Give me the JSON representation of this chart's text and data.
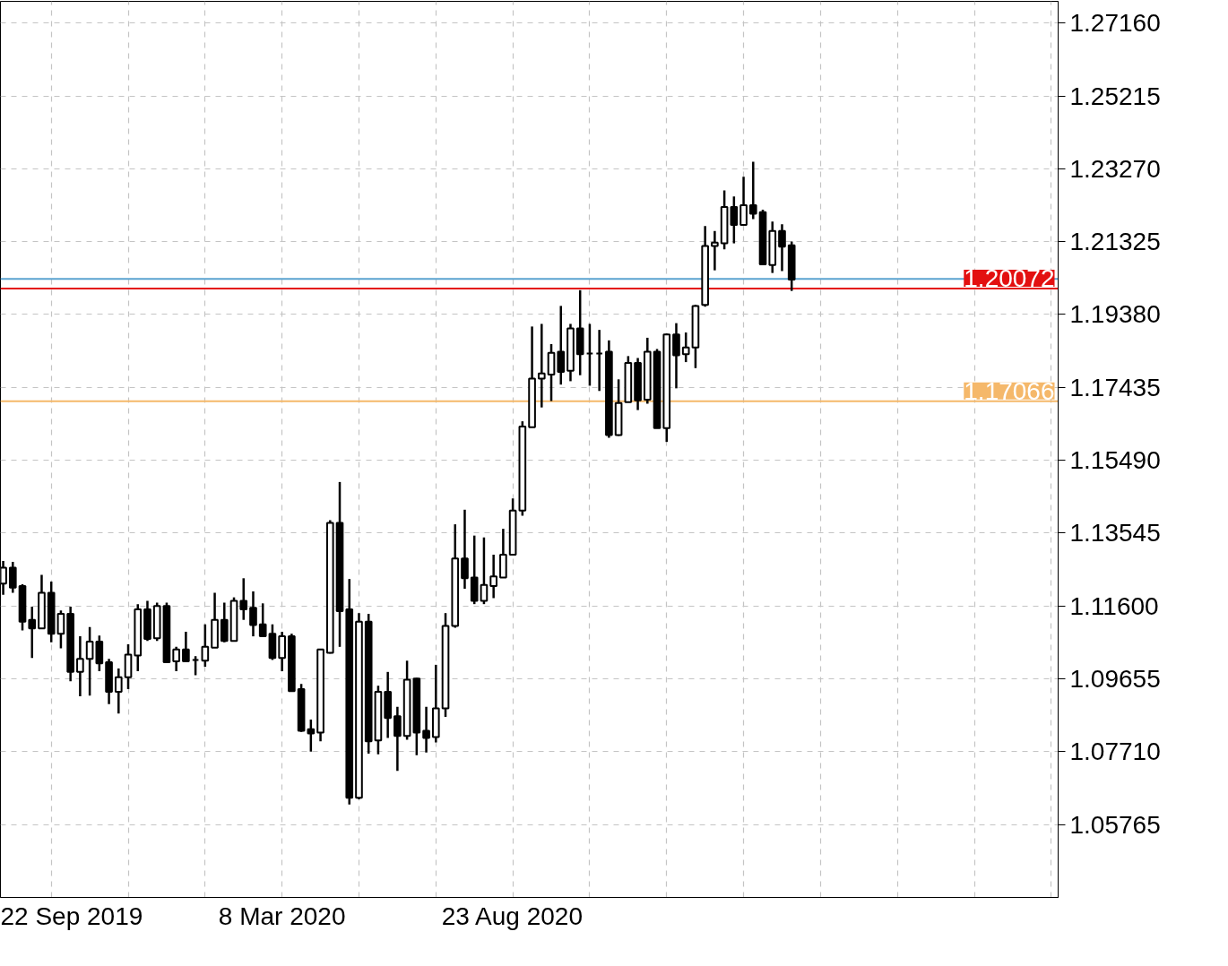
{
  "chart_data": {
    "type": "candlestick",
    "x": [
      "2019-08-18",
      "2019-08-25",
      "2019-09-01",
      "2019-09-08",
      "2019-09-15",
      "2019-09-22",
      "2019-09-29",
      "2019-10-06",
      "2019-10-13",
      "2019-10-20",
      "2019-10-27",
      "2019-11-03",
      "2019-11-10",
      "2019-11-17",
      "2019-11-24",
      "2019-12-01",
      "2019-12-08",
      "2019-12-15",
      "2019-12-22",
      "2019-12-29",
      "2020-01-05",
      "2020-01-12",
      "2020-01-19",
      "2020-01-26",
      "2020-02-02",
      "2020-02-09",
      "2020-02-16",
      "2020-02-23",
      "2020-03-01",
      "2020-03-08",
      "2020-03-15",
      "2020-03-22",
      "2020-03-29",
      "2020-04-05",
      "2020-04-12",
      "2020-04-19",
      "2020-04-26",
      "2020-05-03",
      "2020-05-10",
      "2020-05-17",
      "2020-05-24",
      "2020-05-31",
      "2020-06-07",
      "2020-06-14",
      "2020-06-21",
      "2020-06-28",
      "2020-07-05",
      "2020-07-12",
      "2020-07-19",
      "2020-07-26",
      "2020-08-02",
      "2020-08-09",
      "2020-08-16",
      "2020-08-23",
      "2020-08-30",
      "2020-09-06",
      "2020-09-13",
      "2020-09-20",
      "2020-09-27",
      "2020-10-04",
      "2020-10-11",
      "2020-10-18",
      "2020-10-25",
      "2020-11-01",
      "2020-11-08",
      "2020-11-15",
      "2020-11-22",
      "2020-11-29",
      "2020-12-06",
      "2020-12-13",
      "2020-12-20",
      "2020-12-27",
      "2021-01-03",
      "2021-01-10",
      "2021-01-17",
      "2021-01-24",
      "2021-01-31",
      "2021-02-07",
      "2021-02-14",
      "2021-02-21",
      "2021-02-28",
      "2021-03-07",
      "2021-03-14"
    ],
    "ohlc": [
      [
        1.122,
        1.128,
        1.119,
        1.1262
      ],
      [
        1.1262,
        1.1278,
        1.1195,
        1.1209
      ],
      [
        1.1213,
        1.1218,
        1.1095,
        1.1118
      ],
      [
        1.1123,
        1.1158,
        1.1021,
        1.11
      ],
      [
        1.11,
        1.1243,
        1.11,
        1.1195
      ],
      [
        1.1195,
        1.1225,
        1.1063,
        1.1086
      ],
      [
        1.1086,
        1.1148,
        1.1047,
        1.1139
      ],
      [
        1.1139,
        1.1158,
        1.0959,
        1.0984
      ],
      [
        1.0984,
        1.1079,
        1.0919,
        1.1019
      ],
      [
        1.1019,
        1.1104,
        1.0921,
        1.1065
      ],
      [
        1.1065,
        1.1081,
        1.0986,
        1.1007
      ],
      [
        1.101,
        1.1019,
        1.0898,
        1.0931
      ],
      [
        1.0931,
        1.0993,
        1.0873,
        1.097
      ],
      [
        1.097,
        1.1058,
        1.0938,
        1.103
      ],
      [
        1.1028,
        1.1165,
        1.0986,
        1.1151
      ],
      [
        1.1151,
        1.1174,
        1.1067,
        1.1072
      ],
      [
        1.1074,
        1.1169,
        1.1067,
        1.116
      ],
      [
        1.116,
        1.1169,
        1.101,
        1.101
      ],
      [
        1.1012,
        1.1051,
        1.0986,
        1.1044
      ],
      [
        1.1044,
        1.1091,
        1.101,
        1.1012
      ],
      [
        1.1016,
        1.1026,
        1.0975,
        1.1016
      ],
      [
        1.1014,
        1.1111,
        1.0998,
        1.1051
      ],
      [
        1.1049,
        1.1195,
        1.1049,
        1.1123
      ],
      [
        1.1123,
        1.1169,
        1.1063,
        1.1067
      ],
      [
        1.1067,
        1.1183,
        1.1065,
        1.1174
      ],
      [
        1.1174,
        1.1234,
        1.1123,
        1.1151
      ],
      [
        1.1155,
        1.1199,
        1.1079,
        1.1109
      ],
      [
        1.1111,
        1.1167,
        1.1079,
        1.1079
      ],
      [
        1.1086,
        1.1111,
        1.1016,
        1.1021
      ],
      [
        1.1021,
        1.1091,
        1.0986,
        1.1079
      ],
      [
        1.1079,
        1.1086,
        1.0933,
        1.0933
      ],
      [
        1.0938,
        1.0952,
        1.0824,
        1.0827
      ],
      [
        1.0831,
        1.0857,
        1.0771,
        1.082
      ],
      [
        1.0822,
        1.1044,
        1.0799,
        1.1044
      ],
      [
        1.1035,
        1.1389,
        1.1033,
        1.1382
      ],
      [
        1.1382,
        1.1491,
        1.1051,
        1.1146
      ],
      [
        1.1151,
        1.1232,
        1.063,
        1.0648
      ],
      [
        1.0648,
        1.1141,
        1.0644,
        1.1118
      ],
      [
        1.1118,
        1.1139,
        1.0766,
        1.0799
      ],
      [
        1.0801,
        1.0947,
        1.0764,
        1.0931
      ],
      [
        1.0931,
        1.0984,
        1.0808,
        1.0861
      ],
      [
        1.0866,
        1.0891,
        1.072,
        1.0813
      ],
      [
        1.0813,
        1.1014,
        1.0803,
        1.0963
      ],
      [
        1.0966,
        1.0968,
        1.0762,
        1.0822
      ],
      [
        1.0827,
        1.0891,
        1.0769,
        1.0808
      ],
      [
        1.081,
        1.1003,
        1.0796,
        1.0887
      ],
      [
        1.0887,
        1.1141,
        1.0864,
        1.1107
      ],
      [
        1.1107,
        1.1378,
        1.1102,
        1.1287
      ],
      [
        1.1287,
        1.1417,
        1.1206,
        1.1234
      ],
      [
        1.1236,
        1.1348,
        1.1165,
        1.1174
      ],
      [
        1.1174,
        1.1343,
        1.1165,
        1.1216
      ],
      [
        1.1213,
        1.1297,
        1.1181,
        1.1239
      ],
      [
        1.1236,
        1.1366,
        1.1236,
        1.1297
      ],
      [
        1.1297,
        1.1447,
        1.1297,
        1.1415
      ],
      [
        1.1415,
        1.1653,
        1.1401,
        1.1639
      ],
      [
        1.1637,
        1.1906,
        1.1637,
        1.1767
      ],
      [
        1.1767,
        1.1913,
        1.169,
        1.1781
      ],
      [
        1.1778,
        1.1859,
        1.1707,
        1.1836
      ],
      [
        1.1839,
        1.1961,
        1.1751,
        1.1785
      ],
      [
        1.1788,
        1.1913,
        1.176,
        1.1901
      ],
      [
        1.1901,
        1.2003,
        1.1776,
        1.1832
      ],
      [
        1.1834,
        1.1913,
        1.1748,
        1.1834
      ],
      [
        1.1834,
        1.1897,
        1.1734,
        1.1834
      ],
      [
        1.1839,
        1.1869,
        1.1609,
        1.1616
      ],
      [
        1.1616,
        1.1765,
        1.1614,
        1.1702
      ],
      [
        1.1704,
        1.1827,
        1.1704,
        1.1809
      ],
      [
        1.1809,
        1.1822,
        1.1683,
        1.1709
      ],
      [
        1.1711,
        1.1876,
        1.17,
        1.1839
      ],
      [
        1.1839,
        1.1846,
        1.1635,
        1.1635
      ],
      [
        1.1635,
        1.1887,
        1.1598,
        1.1885
      ],
      [
        1.1885,
        1.1915,
        1.1741,
        1.1829
      ],
      [
        1.1832,
        1.189,
        1.1811,
        1.185
      ],
      [
        1.185,
        1.1964,
        1.1795,
        1.1961
      ],
      [
        1.1964,
        1.2174,
        1.1959,
        1.2121
      ],
      [
        1.2121,
        1.2161,
        1.2056,
        1.213
      ],
      [
        1.2128,
        1.2269,
        1.2112,
        1.2225
      ],
      [
        1.2225,
        1.2253,
        1.2128,
        1.2177
      ],
      [
        1.2177,
        1.2306,
        1.2177,
        1.223
      ],
      [
        1.223,
        1.2346,
        1.2193,
        1.2207
      ],
      [
        1.2211,
        1.2218,
        1.2072,
        1.2072
      ],
      [
        1.207,
        1.2186,
        1.2049,
        1.2161
      ],
      [
        1.2161,
        1.2179,
        1.2054,
        1.2119
      ],
      [
        1.2123,
        1.2133,
        1.2001,
        1.2031
      ]
    ],
    "xlim": [
      "2019-08-16",
      "2021-09-24"
    ],
    "xticks": [
      {
        "value": "2019-09-22",
        "label": "22 Sep 2019"
      },
      {
        "value": "2019-11-17",
        "label": null
      },
      {
        "value": "2020-01-12",
        "label": null
      },
      {
        "value": "2020-03-08",
        "label": "8 Mar 2020"
      },
      {
        "value": "2020-05-03",
        "label": null
      },
      {
        "value": "2020-06-28",
        "label": null
      },
      {
        "value": "2020-08-23",
        "label": "23 Aug 2020"
      },
      {
        "value": "2020-10-18",
        "label": null
      },
      {
        "value": "2020-12-13",
        "label": null
      },
      {
        "value": "2021-02-07",
        "label": null
      },
      {
        "value": "2021-04-04",
        "label": null
      },
      {
        "value": "2021-05-30",
        "label": null
      },
      {
        "value": "2021-07-25",
        "label": null
      },
      {
        "value": "2021-09-19",
        "label": null
      }
    ],
    "ylim": [
      1.0382,
      1.2774
    ],
    "yticks": [
      {
        "value": 1.2716,
        "label": "1.27160"
      },
      {
        "value": 1.25215,
        "label": "1.25215"
      },
      {
        "value": 1.2327,
        "label": "1.23270"
      },
      {
        "value": 1.21325,
        "label": "1.21325"
      },
      {
        "value": 1.1938,
        "label": "1.19380"
      },
      {
        "value": 1.17435,
        "label": "1.17435"
      },
      {
        "value": 1.1549,
        "label": "1.15490"
      },
      {
        "value": 1.13545,
        "label": "1.13545"
      },
      {
        "value": 1.116,
        "label": "1.11600"
      },
      {
        "value": 1.09655,
        "label": "1.09655"
      },
      {
        "value": 1.0771,
        "label": "1.07710"
      },
      {
        "value": 1.05765,
        "label": "1.05765"
      }
    ],
    "ref_lines": [
      {
        "axis": "y",
        "value": 1.2033,
        "label": null,
        "color": "#5ba3d0"
      },
      {
        "axis": "y",
        "value": 1.20072,
        "label": "1.20072",
        "color": "#e31010"
      },
      {
        "axis": "y",
        "value": 1.17066,
        "label": "1.17066",
        "color": "#f5b86a"
      }
    ],
    "grid": true
  }
}
